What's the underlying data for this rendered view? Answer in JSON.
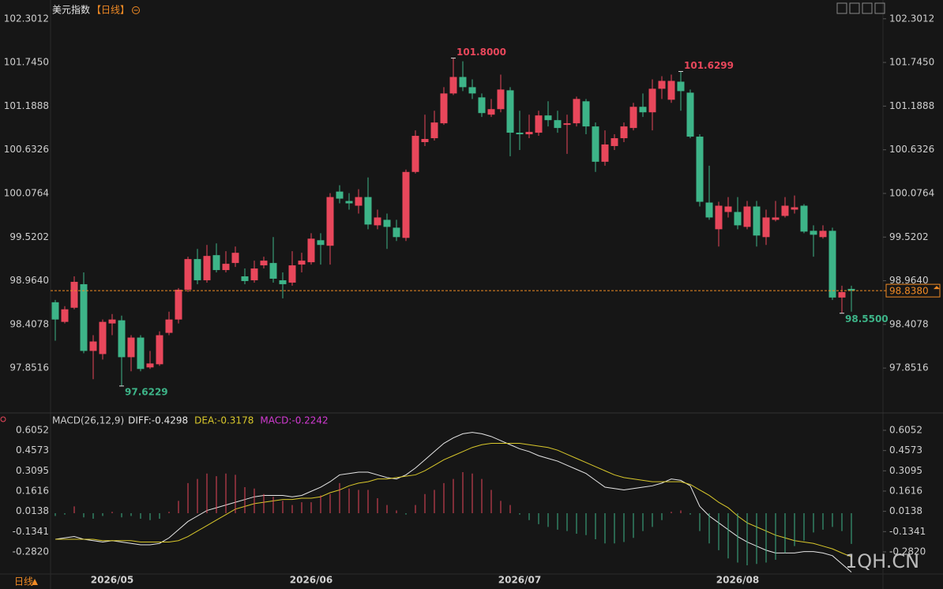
{
  "header": {
    "title": "美元指数",
    "period": "【日线】"
  },
  "toolbar": {
    "period_button": "日线"
  },
  "watermark": "1QH.CN",
  "chart_data": [
    {
      "type": "candlestick",
      "categories": [
        null,
        null,
        null,
        null,
        null,
        null,
        "2026/05",
        null,
        null,
        null,
        null,
        null,
        null,
        null,
        null,
        null,
        null,
        null,
        null,
        null,
        null,
        null,
        null,
        null,
        null,
        null,
        null,
        "2026/06",
        null,
        null,
        null,
        null,
        null,
        null,
        null,
        null,
        null,
        null,
        null,
        null,
        null,
        null,
        null,
        null,
        null,
        null,
        null,
        null,
        null,
        "2026/07",
        null,
        null,
        null,
        null,
        null,
        null,
        null,
        null,
        null,
        null,
        null,
        null,
        null,
        null,
        null,
        null,
        null,
        null,
        null,
        null,
        null,
        null,
        "2026/08",
        null,
        null,
        null,
        null,
        null,
        null,
        null,
        null,
        null,
        null,
        null,
        null
      ],
      "open": [
        98.69,
        98.44,
        98.62,
        98.92,
        98.07,
        98.03,
        98.42,
        98.46,
        97.99,
        98.24,
        97.86,
        97.9,
        98.3,
        98.47,
        98.85,
        99.24,
        98.97,
        99.29,
        99.1,
        99.19,
        99.02,
        98.97,
        99.16,
        99.19,
        98.97,
        98.94,
        99.17,
        99.2,
        99.48,
        99.41,
        100.1,
        99.98,
        99.92,
        100.03,
        99.67,
        99.74,
        99.64,
        99.51,
        100.35,
        100.73,
        100.78,
        100.97,
        101.35,
        101.56,
        101.43,
        101.3,
        101.08,
        101.15,
        101.39,
        100.85,
        100.83,
        100.85,
        101.07,
        101.01,
        100.95,
        100.97,
        101.25,
        100.93,
        100.48,
        100.68,
        100.78,
        100.91,
        101.18,
        101.11,
        101.41,
        101.27,
        101.5,
        101.36,
        100.8,
        99.96,
        99.62,
        99.84,
        99.84,
        99.65,
        99.91,
        99.52,
        99.74,
        99.79,
        99.87,
        99.92,
        99.6,
        99.52,
        99.6,
        98.75,
        98.86
      ],
      "high": [
        98.72,
        98.64,
        99.02,
        99.07,
        98.27,
        98.47,
        98.54,
        98.52,
        98.27,
        98.27,
        98.07,
        98.32,
        98.57,
        98.87,
        99.27,
        99.37,
        99.42,
        99.44,
        99.34,
        99.4,
        99.12,
        99.22,
        99.27,
        99.52,
        99.07,
        99.34,
        99.32,
        99.57,
        99.57,
        100.08,
        100.18,
        100.08,
        100.13,
        100.28,
        99.87,
        99.82,
        99.74,
        100.38,
        100.88,
        101.08,
        101.13,
        101.43,
        101.8,
        101.76,
        101.53,
        101.35,
        101.28,
        101.59,
        101.43,
        101.13,
        101.08,
        101.13,
        101.25,
        101.13,
        101.08,
        101.31,
        101.28,
        100.98,
        100.88,
        100.83,
        100.98,
        101.23,
        101.35,
        101.53,
        101.57,
        101.59,
        101.6299,
        101.4,
        100.83,
        100.43,
        99.97,
        100.03,
        100.03,
        99.98,
        99.98,
        99.87,
        99.98,
        100.03,
        100.05,
        99.94,
        99.67,
        99.67,
        99.64,
        98.9,
        98.9
      ],
      "low": [
        98.2,
        98.42,
        98.6,
        98.04,
        97.71,
        97.96,
        98.27,
        97.6229,
        97.81,
        97.81,
        97.84,
        97.88,
        98.27,
        98.42,
        98.82,
        98.92,
        98.94,
        99.07,
        99.07,
        99.14,
        98.92,
        98.94,
        99.12,
        98.94,
        98.74,
        98.9,
        99.07,
        99.17,
        99.17,
        99.17,
        99.95,
        99.87,
        99.82,
        99.62,
        99.62,
        99.37,
        99.47,
        99.47,
        100.33,
        100.68,
        100.75,
        100.95,
        101.33,
        101.38,
        101.28,
        101.05,
        101.05,
        101.11,
        100.55,
        100.63,
        100.78,
        100.81,
        100.93,
        100.85,
        100.58,
        100.93,
        100.83,
        100.35,
        100.43,
        100.63,
        100.73,
        100.88,
        101.05,
        100.88,
        101.28,
        101.23,
        101.13,
        100.78,
        99.91,
        99.74,
        99.4,
        99.77,
        99.62,
        99.62,
        99.4,
        99.42,
        99.72,
        99.77,
        99.82,
        99.57,
        99.27,
        99.5,
        98.72,
        98.55,
        98.57
      ],
      "close": [
        98.47,
        98.6,
        98.95,
        98.07,
        98.19,
        98.44,
        98.47,
        97.99,
        98.24,
        97.84,
        97.91,
        98.27,
        98.47,
        98.85,
        99.24,
        98.97,
        99.28,
        99.1,
        99.18,
        99.32,
        98.96,
        99.12,
        99.22,
        98.99,
        98.92,
        99.16,
        99.22,
        99.5,
        99.42,
        100.03,
        100.01,
        99.95,
        100.03,
        99.68,
        99.77,
        99.65,
        99.52,
        100.35,
        100.81,
        100.77,
        100.98,
        101.35,
        101.56,
        101.43,
        101.35,
        101.1,
        101.15,
        101.4,
        100.85,
        100.83,
        100.86,
        101.07,
        101.01,
        100.91,
        100.97,
        101.28,
        100.93,
        100.48,
        100.7,
        100.78,
        100.93,
        101.18,
        101.11,
        101.41,
        101.51,
        101.51,
        101.38,
        100.8,
        99.97,
        99.77,
        99.92,
        99.91,
        99.67,
        99.91,
        99.54,
        99.77,
        99.77,
        99.92,
        99.9,
        99.59,
        99.55,
        99.6,
        98.75,
        98.82,
        98.838
      ],
      "up_color": "#e8475b",
      "down_color": "#3db488",
      "ylim": [
        97.31,
        102.44
      ],
      "yticks": [
        102.3012,
        {
          "value": 101.745,
          "label": "101.7450"
        },
        101.1888,
        100.6326,
        100.0764,
        99.5202,
        {
          "value": 98.964,
          "label": "98.9640"
        },
        98.4078,
        97.8516
      ],
      "annotations": [
        {
          "value": 101.8,
          "label": "101.8000"
        },
        {
          "value": 101.6299,
          "label": "101.6299"
        },
        {
          "value": 97.6229,
          "label": "97.6229"
        },
        {
          "value": 98.55,
          "label": "98.5500"
        }
      ],
      "last_price": {
        "value": 98.838,
        "label": "98.8380"
      },
      "last_price_color": "#f08a24"
    },
    {
      "type": "macd",
      "title": "MACD(26,12,9)",
      "series": [
        {
          "name": "DIFF:-0.4298",
          "color": "#e6e6e6",
          "values": [
            -0.19,
            -0.18,
            -0.17,
            -0.19,
            -0.2,
            -0.21,
            -0.2,
            -0.21,
            -0.22,
            -0.23,
            -0.23,
            -0.22,
            -0.18,
            -0.12,
            -0.06,
            -0.02,
            0.02,
            0.04,
            0.06,
            0.08,
            0.1,
            0.12,
            0.13,
            0.13,
            0.13,
            0.12,
            0.13,
            0.16,
            0.19,
            0.23,
            0.28,
            0.29,
            0.3,
            0.3,
            0.28,
            0.26,
            0.25,
            0.28,
            0.33,
            0.39,
            0.45,
            0.51,
            0.55,
            0.58,
            0.59,
            0.58,
            0.56,
            0.53,
            0.5,
            0.47,
            0.45,
            0.42,
            0.4,
            0.38,
            0.35,
            0.32,
            0.29,
            0.24,
            0.19,
            0.18,
            0.17,
            0.18,
            0.19,
            0.2,
            0.22,
            0.25,
            0.24,
            0.2,
            0.05,
            -0.02,
            -0.07,
            -0.12,
            -0.17,
            -0.21,
            -0.24,
            -0.27,
            -0.29,
            -0.29,
            -0.29,
            -0.28,
            -0.28,
            -0.29,
            -0.31,
            -0.37,
            -0.4298
          ]
        },
        {
          "name": "DEA:-0.3178",
          "color": "#d9c82b",
          "values": [
            -0.19,
            -0.19,
            -0.19,
            -0.19,
            -0.19,
            -0.2,
            -0.2,
            -0.2,
            -0.2,
            -0.21,
            -0.21,
            -0.21,
            -0.21,
            -0.2,
            -0.17,
            -0.13,
            -0.09,
            -0.05,
            -0.01,
            0.03,
            0.05,
            0.07,
            0.08,
            0.09,
            0.1,
            0.1,
            0.11,
            0.11,
            0.12,
            0.15,
            0.17,
            0.2,
            0.22,
            0.23,
            0.25,
            0.25,
            0.26,
            0.27,
            0.28,
            0.31,
            0.35,
            0.39,
            0.42,
            0.45,
            0.48,
            0.5,
            0.51,
            0.51,
            0.51,
            0.51,
            0.5,
            0.49,
            0.48,
            0.46,
            0.43,
            0.4,
            0.37,
            0.34,
            0.31,
            0.28,
            0.26,
            0.25,
            0.24,
            0.23,
            0.23,
            0.23,
            0.23,
            0.21,
            0.17,
            0.13,
            0.08,
            0.04,
            -0.02,
            -0.07,
            -0.1,
            -0.13,
            -0.16,
            -0.18,
            -0.2,
            -0.21,
            -0.22,
            -0.24,
            -0.26,
            -0.29,
            -0.3178
          ]
        },
        {
          "name": "MACD:-0.2242",
          "color": "#d23ad2",
          "kind": "histogram",
          "values": [
            -0.02,
            -0.01,
            0.05,
            -0.03,
            -0.04,
            -0.02,
            0.01,
            -0.03,
            -0.02,
            -0.04,
            -0.05,
            -0.04,
            0.01,
            0.09,
            0.22,
            0.25,
            0.29,
            0.27,
            0.29,
            0.28,
            0.19,
            0.18,
            0.14,
            0.12,
            0.09,
            0.06,
            0.08,
            0.08,
            0.13,
            0.14,
            0.22,
            0.18,
            0.17,
            0.17,
            0.11,
            0.06,
            0.02,
            -0.01,
            0.06,
            0.14,
            0.17,
            0.22,
            0.25,
            0.3,
            0.29,
            0.25,
            0.17,
            0.09,
            0.06,
            -0.01,
            -0.05,
            -0.08,
            -0.1,
            -0.12,
            -0.13,
            -0.15,
            -0.16,
            -0.19,
            -0.22,
            -0.22,
            -0.21,
            -0.18,
            -0.13,
            -0.1,
            -0.05,
            0.01,
            0.02,
            -0.01,
            -0.13,
            -0.22,
            -0.27,
            -0.33,
            -0.36,
            -0.38,
            -0.37,
            -0.36,
            -0.34,
            -0.29,
            -0.24,
            -0.2,
            -0.14,
            -0.12,
            -0.1,
            -0.13,
            -0.2242
          ]
        }
      ],
      "up_color": "#e8475b",
      "down_color": "#3db488",
      "ylim": [
        -0.432,
        0.634
      ],
      "yticks": [
        0.6052,
        0.4573,
        0.3095,
        0.1616,
        0.0138,
        -0.1341,
        {
          "value": -0.282,
          "label": "-0.2820"
        }
      ]
    }
  ]
}
